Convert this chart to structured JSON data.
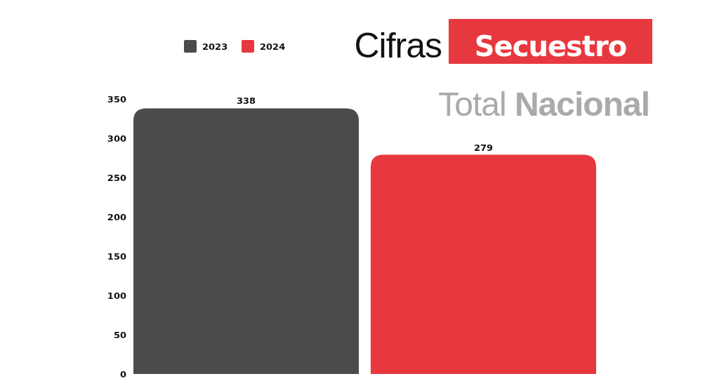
{
  "chart_data": {
    "type": "bar",
    "title": "Cifras Secuestro",
    "subtitle": "Total Nacional",
    "categories": [
      null,
      null
    ],
    "series": [
      {
        "name": "2023",
        "color": "#4b4b4b",
        "values": [
          338,
          null
        ]
      },
      {
        "name": "2024",
        "color": "#e8383f",
        "values": [
          null,
          279
        ]
      }
    ],
    "stacked": true,
    "ylim": [
      0,
      350
    ],
    "yticks": [
      0,
      50,
      100,
      150,
      200,
      250,
      300,
      350
    ],
    "data_labels": true,
    "legend": "top left"
  }
}
